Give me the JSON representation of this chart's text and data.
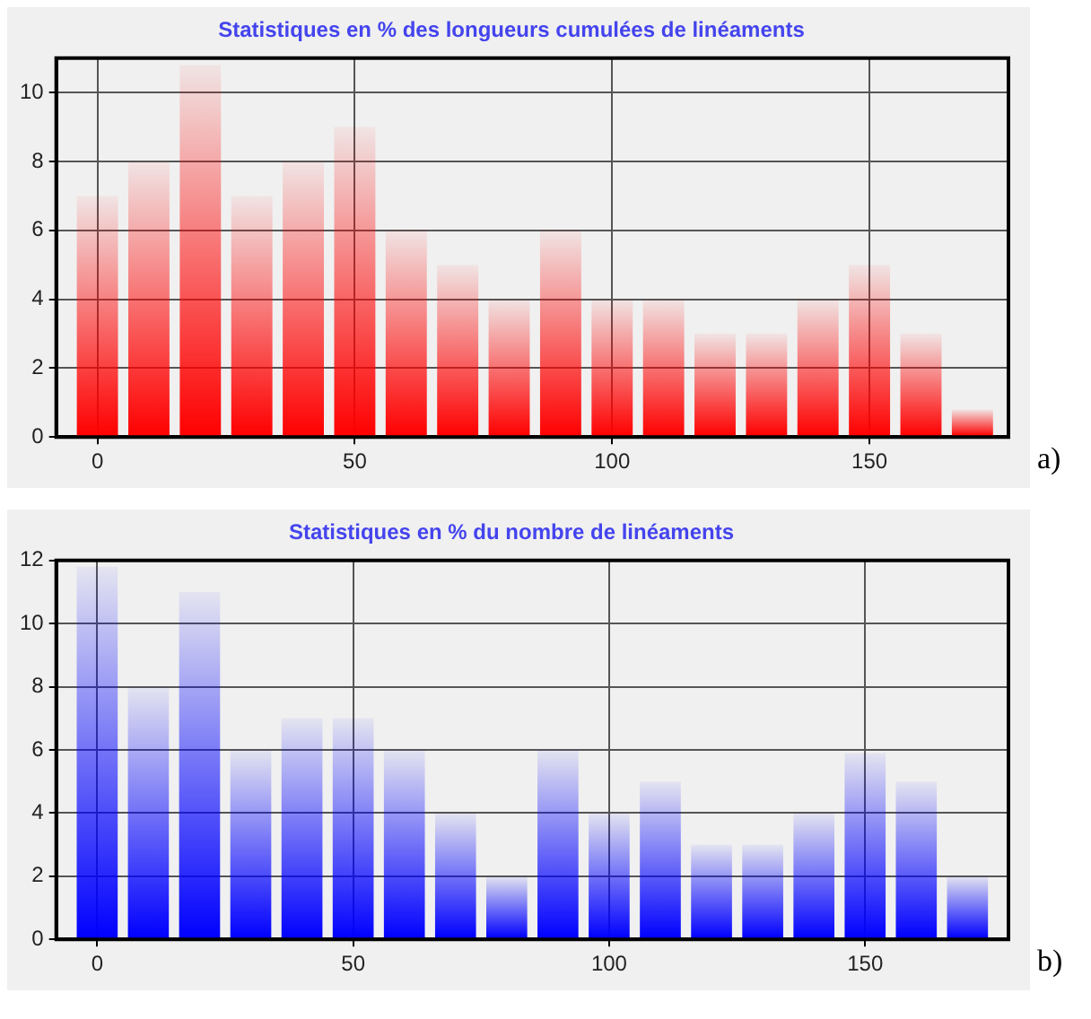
{
  "chart_data": [
    {
      "type": "bar",
      "title": "Statistiques en % des longueurs cumulées de linéaments",
      "annotations": [
        "a)"
      ],
      "x": [
        0,
        10,
        20,
        30,
        40,
        50,
        60,
        70,
        80,
        90,
        100,
        110,
        120,
        130,
        140,
        150,
        160,
        170
      ],
      "values": [
        7,
        8,
        10.8,
        7,
        8,
        9,
        6,
        5,
        4,
        6,
        4,
        4,
        3,
        3,
        4,
        5,
        3,
        0.8
      ],
      "color": "#ff0000",
      "xlim": [
        -8,
        177
      ],
      "xticks": [
        0,
        50,
        100,
        150
      ],
      "ylim": [
        0,
        11
      ],
      "yticks": [
        0,
        2,
        4,
        6,
        8,
        10
      ],
      "grid": true,
      "legend": false
    },
    {
      "type": "bar",
      "title": "Statistiques en % du nombre de linéaments",
      "annotations": [
        "b)"
      ],
      "x": [
        0,
        10,
        20,
        30,
        40,
        50,
        60,
        70,
        80,
        90,
        100,
        110,
        120,
        130,
        140,
        150,
        160,
        170
      ],
      "values": [
        11.8,
        8,
        11,
        6,
        7,
        7,
        6,
        4,
        2,
        6,
        4,
        5,
        3,
        3,
        4,
        5.9,
        5,
        2
      ],
      "color": "#0000ff",
      "xlim": [
        -8,
        178
      ],
      "xticks": [
        0,
        50,
        100,
        150
      ],
      "ylim": [
        0,
        12
      ],
      "yticks": [
        0,
        2,
        4,
        6,
        8,
        10,
        12
      ],
      "grid": true,
      "legend": false
    }
  ]
}
